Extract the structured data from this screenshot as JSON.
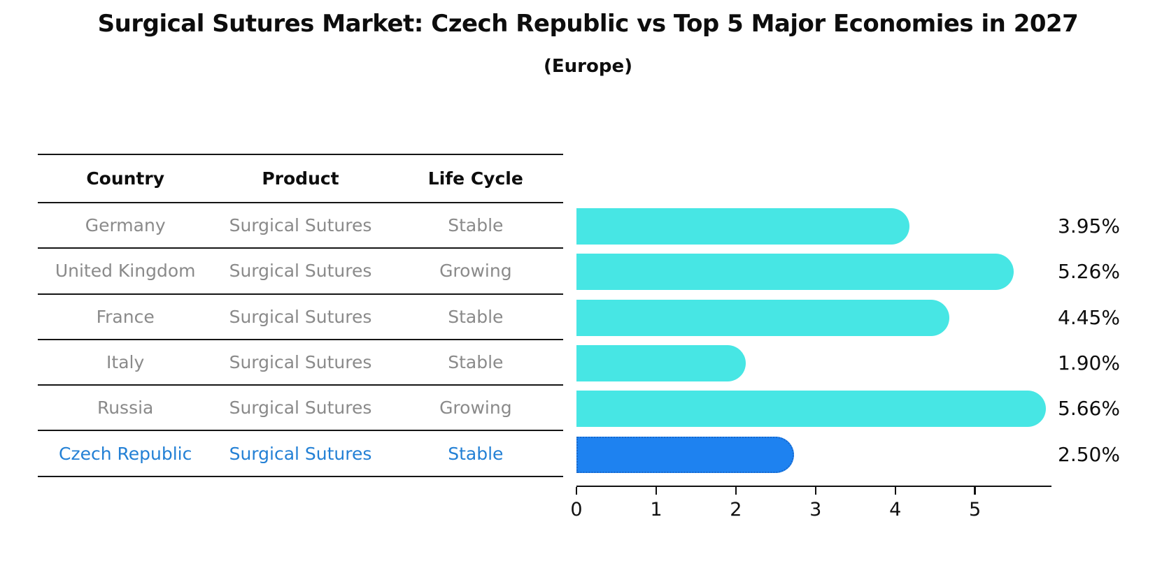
{
  "title": "Surgical Sutures Market: Czech Republic vs Top 5 Major Economies in 2027",
  "subtitle": "(Europe)",
  "table": {
    "headers": [
      "Country",
      "Product",
      "Life Cycle"
    ],
    "rows": [
      {
        "country": "Germany",
        "product": "Surgical Sutures",
        "life_cycle": "Stable",
        "highlight": false
      },
      {
        "country": "United Kingdom",
        "product": "Surgical Sutures",
        "life_cycle": "Growing",
        "highlight": false
      },
      {
        "country": "France",
        "product": "Surgical Sutures",
        "life_cycle": "Stable",
        "highlight": false
      },
      {
        "country": "Italy",
        "product": "Surgical Sutures",
        "life_cycle": "Stable",
        "highlight": false
      },
      {
        "country": "Russia",
        "product": "Surgical Sutures",
        "life_cycle": "Growing",
        "highlight": false
      },
      {
        "country": "Czech Republic",
        "product": "Surgical Sutures",
        "life_cycle": "Stable",
        "highlight": true
      }
    ]
  },
  "chart_data": {
    "type": "bar",
    "orientation": "horizontal",
    "title": "Surgical Sutures Market: Czech Republic vs Top 5 Major Economies in 2027",
    "subtitle": "(Europe)",
    "categories": [
      "Germany",
      "United Kingdom",
      "France",
      "Italy",
      "Russia",
      "Czech Republic"
    ],
    "values": [
      3.95,
      5.26,
      4.45,
      1.9,
      5.66,
      2.5
    ],
    "value_labels": [
      "3.95%",
      "5.26%",
      "4.45%",
      "1.90%",
      "5.66%",
      "2.50%"
    ],
    "x_ticks": [
      "0",
      "1",
      "2",
      "3",
      "4",
      "5"
    ],
    "xlim": [
      0,
      5.96
    ],
    "grid": false,
    "legend": false,
    "highlight_index": 5
  },
  "colors": {
    "bar": "#47e6e4",
    "highlight_bar": "#1e82f0",
    "highlight_border": "#1868cc",
    "highlight_text": "#2380d5",
    "row_text": "#8a8a8a",
    "axis": "#111111"
  }
}
